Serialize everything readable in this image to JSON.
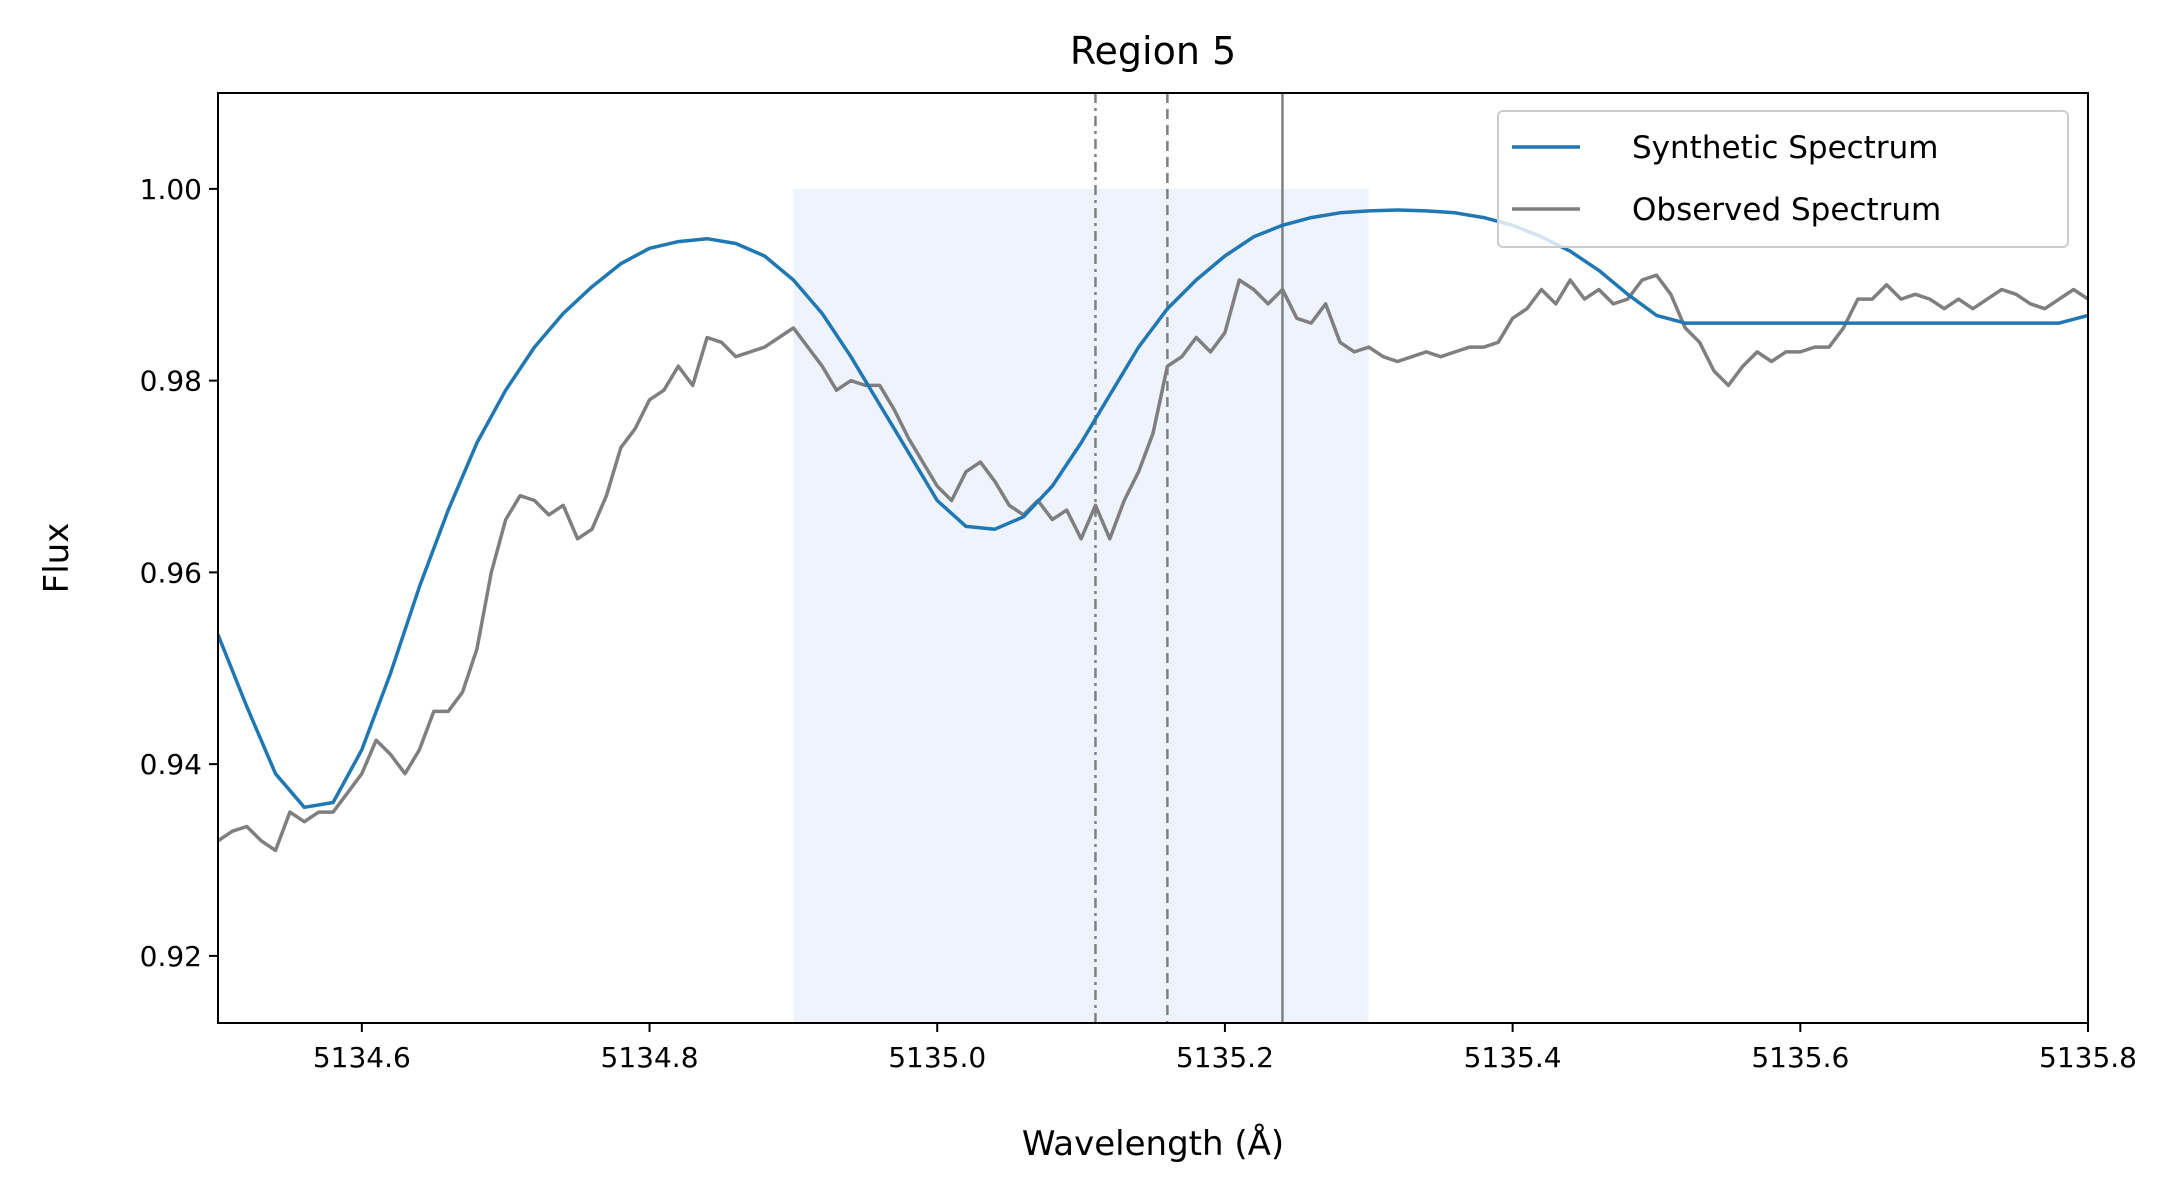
{
  "chart_data": {
    "type": "line",
    "title": "Region 5",
    "xlabel": "Wavelength (Å)",
    "ylabel": "Flux",
    "xlim": [
      5134.5,
      5135.8
    ],
    "ylim": [
      0.913,
      1.01
    ],
    "x_ticks": [
      5134.6,
      5134.8,
      5135.0,
      5135.2,
      5135.4,
      5135.6,
      5135.8
    ],
    "x_tick_labels": [
      "5134.6",
      "5134.8",
      "5135.0",
      "5135.2",
      "5135.4",
      "5135.6",
      "5135.8"
    ],
    "y_ticks": [
      0.92,
      0.94,
      0.96,
      0.98,
      1.0
    ],
    "y_tick_labels": [
      "0.92",
      "0.94",
      "0.96",
      "0.98",
      "1.00"
    ],
    "grid": false,
    "legend_placement": "top-right",
    "shaded_region": {
      "x": [
        5134.9,
        5135.3
      ],
      "y": [
        0.913,
        1.0
      ],
      "color": "#eef3fd"
    },
    "vertical_lines": [
      {
        "x": 5135.11,
        "style": "dashdot",
        "color": "#808080"
      },
      {
        "x": 5135.16,
        "style": "dashed",
        "color": "#808080"
      },
      {
        "x": 5135.24,
        "style": "solid",
        "color": "#808080"
      }
    ],
    "series": [
      {
        "name": "Synthetic Spectrum",
        "color": "#1f77b4",
        "x": [
          5134.5,
          5134.52,
          5134.54,
          5134.56,
          5134.58,
          5134.6,
          5134.62,
          5134.64,
          5134.66,
          5134.68,
          5134.7,
          5134.72,
          5134.74,
          5134.76,
          5134.78,
          5134.8,
          5134.82,
          5134.84,
          5134.86,
          5134.88,
          5134.9,
          5134.92,
          5134.94,
          5134.96,
          5134.98,
          5135.0,
          5135.02,
          5135.04,
          5135.06,
          5135.08,
          5135.1,
          5135.12,
          5135.14,
          5135.16,
          5135.18,
          5135.2,
          5135.22,
          5135.24,
          5135.26,
          5135.28,
          5135.3,
          5135.32,
          5135.34,
          5135.36,
          5135.38,
          5135.4,
          5135.42,
          5135.44,
          5135.46,
          5135.48,
          5135.5,
          5135.52,
          5135.54,
          5135.56,
          5135.58,
          5135.6,
          5135.62,
          5135.64,
          5135.66,
          5135.68,
          5135.7,
          5135.72,
          5135.74,
          5135.76,
          5135.78,
          5135.8
        ],
        "y": [
          0.9535,
          0.946,
          0.939,
          0.9355,
          0.936,
          0.9415,
          0.9495,
          0.9585,
          0.9665,
          0.9735,
          0.979,
          0.9835,
          0.987,
          0.9898,
          0.9922,
          0.9938,
          0.9945,
          0.9948,
          0.9943,
          0.993,
          0.9905,
          0.987,
          0.9825,
          0.9775,
          0.9725,
          0.9675,
          0.9648,
          0.9645,
          0.9658,
          0.969,
          0.9735,
          0.9785,
          0.9835,
          0.9875,
          0.9905,
          0.993,
          0.995,
          0.9962,
          0.997,
          0.9975,
          0.9977,
          0.9978,
          0.9977,
          0.9975,
          0.997,
          0.9962,
          0.995,
          0.9935,
          0.9915,
          0.989,
          0.9868,
          0.986,
          0.986,
          0.986,
          0.986,
          0.986,
          0.986,
          0.986,
          0.986,
          0.986,
          0.986,
          0.986,
          0.986,
          0.986,
          0.986,
          0.9868
        ]
      },
      {
        "name": "Observed Spectrum",
        "color": "#7f7f7f",
        "x": [
          5134.5,
          5134.51,
          5134.52,
          5134.53,
          5134.54,
          5134.55,
          5134.56,
          5134.57,
          5134.58,
          5134.59,
          5134.6,
          5134.61,
          5134.62,
          5134.63,
          5134.64,
          5134.65,
          5134.66,
          5134.67,
          5134.68,
          5134.69,
          5134.7,
          5134.71,
          5134.72,
          5134.73,
          5134.74,
          5134.75,
          5134.76,
          5134.77,
          5134.78,
          5134.79,
          5134.8,
          5134.81,
          5134.82,
          5134.83,
          5134.84,
          5134.85,
          5134.86,
          5134.87,
          5134.88,
          5134.89,
          5134.9,
          5134.91,
          5134.92,
          5134.93,
          5134.94,
          5134.95,
          5134.96,
          5134.97,
          5134.98,
          5134.99,
          5135.0,
          5135.01,
          5135.02,
          5135.03,
          5135.04,
          5135.05,
          5135.06,
          5135.07,
          5135.08,
          5135.09,
          5135.1,
          5135.11,
          5135.12,
          5135.13,
          5135.14,
          5135.15,
          5135.16,
          5135.17,
          5135.18,
          5135.19,
          5135.2,
          5135.21,
          5135.22,
          5135.23,
          5135.24,
          5135.25,
          5135.26,
          5135.27,
          5135.28,
          5135.29,
          5135.3,
          5135.31,
          5135.32,
          5135.33,
          5135.34,
          5135.35,
          5135.36,
          5135.37,
          5135.38,
          5135.39,
          5135.4,
          5135.41,
          5135.42,
          5135.43,
          5135.44,
          5135.45,
          5135.46,
          5135.47,
          5135.48,
          5135.49,
          5135.5,
          5135.51,
          5135.52,
          5135.53,
          5135.54,
          5135.55,
          5135.56,
          5135.57,
          5135.58,
          5135.59,
          5135.6,
          5135.61,
          5135.62,
          5135.63,
          5135.64,
          5135.65,
          5135.66,
          5135.67,
          5135.68,
          5135.69,
          5135.7,
          5135.71,
          5135.72,
          5135.73,
          5135.74,
          5135.75,
          5135.76,
          5135.77,
          5135.78,
          5135.79,
          5135.8
        ],
        "y": [
          0.932,
          0.933,
          0.9335,
          0.932,
          0.931,
          0.935,
          0.934,
          0.935,
          0.935,
          0.937,
          0.939,
          0.9425,
          0.941,
          0.939,
          0.9415,
          0.9455,
          0.9455,
          0.9475,
          0.952,
          0.96,
          0.9655,
          0.968,
          0.9675,
          0.966,
          0.967,
          0.9635,
          0.9645,
          0.968,
          0.973,
          0.975,
          0.978,
          0.979,
          0.9815,
          0.9795,
          0.9845,
          0.984,
          0.9825,
          0.983,
          0.9835,
          0.9845,
          0.9855,
          0.9835,
          0.9815,
          0.979,
          0.98,
          0.9795,
          0.9795,
          0.977,
          0.974,
          0.9715,
          0.969,
          0.9675,
          0.9705,
          0.9715,
          0.9695,
          0.967,
          0.966,
          0.9675,
          0.9655,
          0.9665,
          0.9635,
          0.967,
          0.9635,
          0.9675,
          0.9705,
          0.9745,
          0.9815,
          0.9825,
          0.9845,
          0.983,
          0.985,
          0.9905,
          0.9895,
          0.988,
          0.9895,
          0.9865,
          0.986,
          0.988,
          0.984,
          0.983,
          0.9835,
          0.9825,
          0.982,
          0.9825,
          0.983,
          0.9825,
          0.983,
          0.9835,
          0.9835,
          0.984,
          0.9865,
          0.9875,
          0.9895,
          0.988,
          0.9905,
          0.9885,
          0.9895,
          0.988,
          0.9885,
          0.9905,
          0.991,
          0.989,
          0.9855,
          0.984,
          0.981,
          0.9795,
          0.9815,
          0.983,
          0.982,
          0.983,
          0.983,
          0.9835,
          0.9835,
          0.9855,
          0.9885,
          0.9885,
          0.99,
          0.9885,
          0.989,
          0.9885,
          0.9875,
          0.9885,
          0.9875,
          0.9885,
          0.9895,
          0.989,
          0.988,
          0.9875,
          0.9885,
          0.9895,
          0.9885
        ]
      }
    ]
  }
}
